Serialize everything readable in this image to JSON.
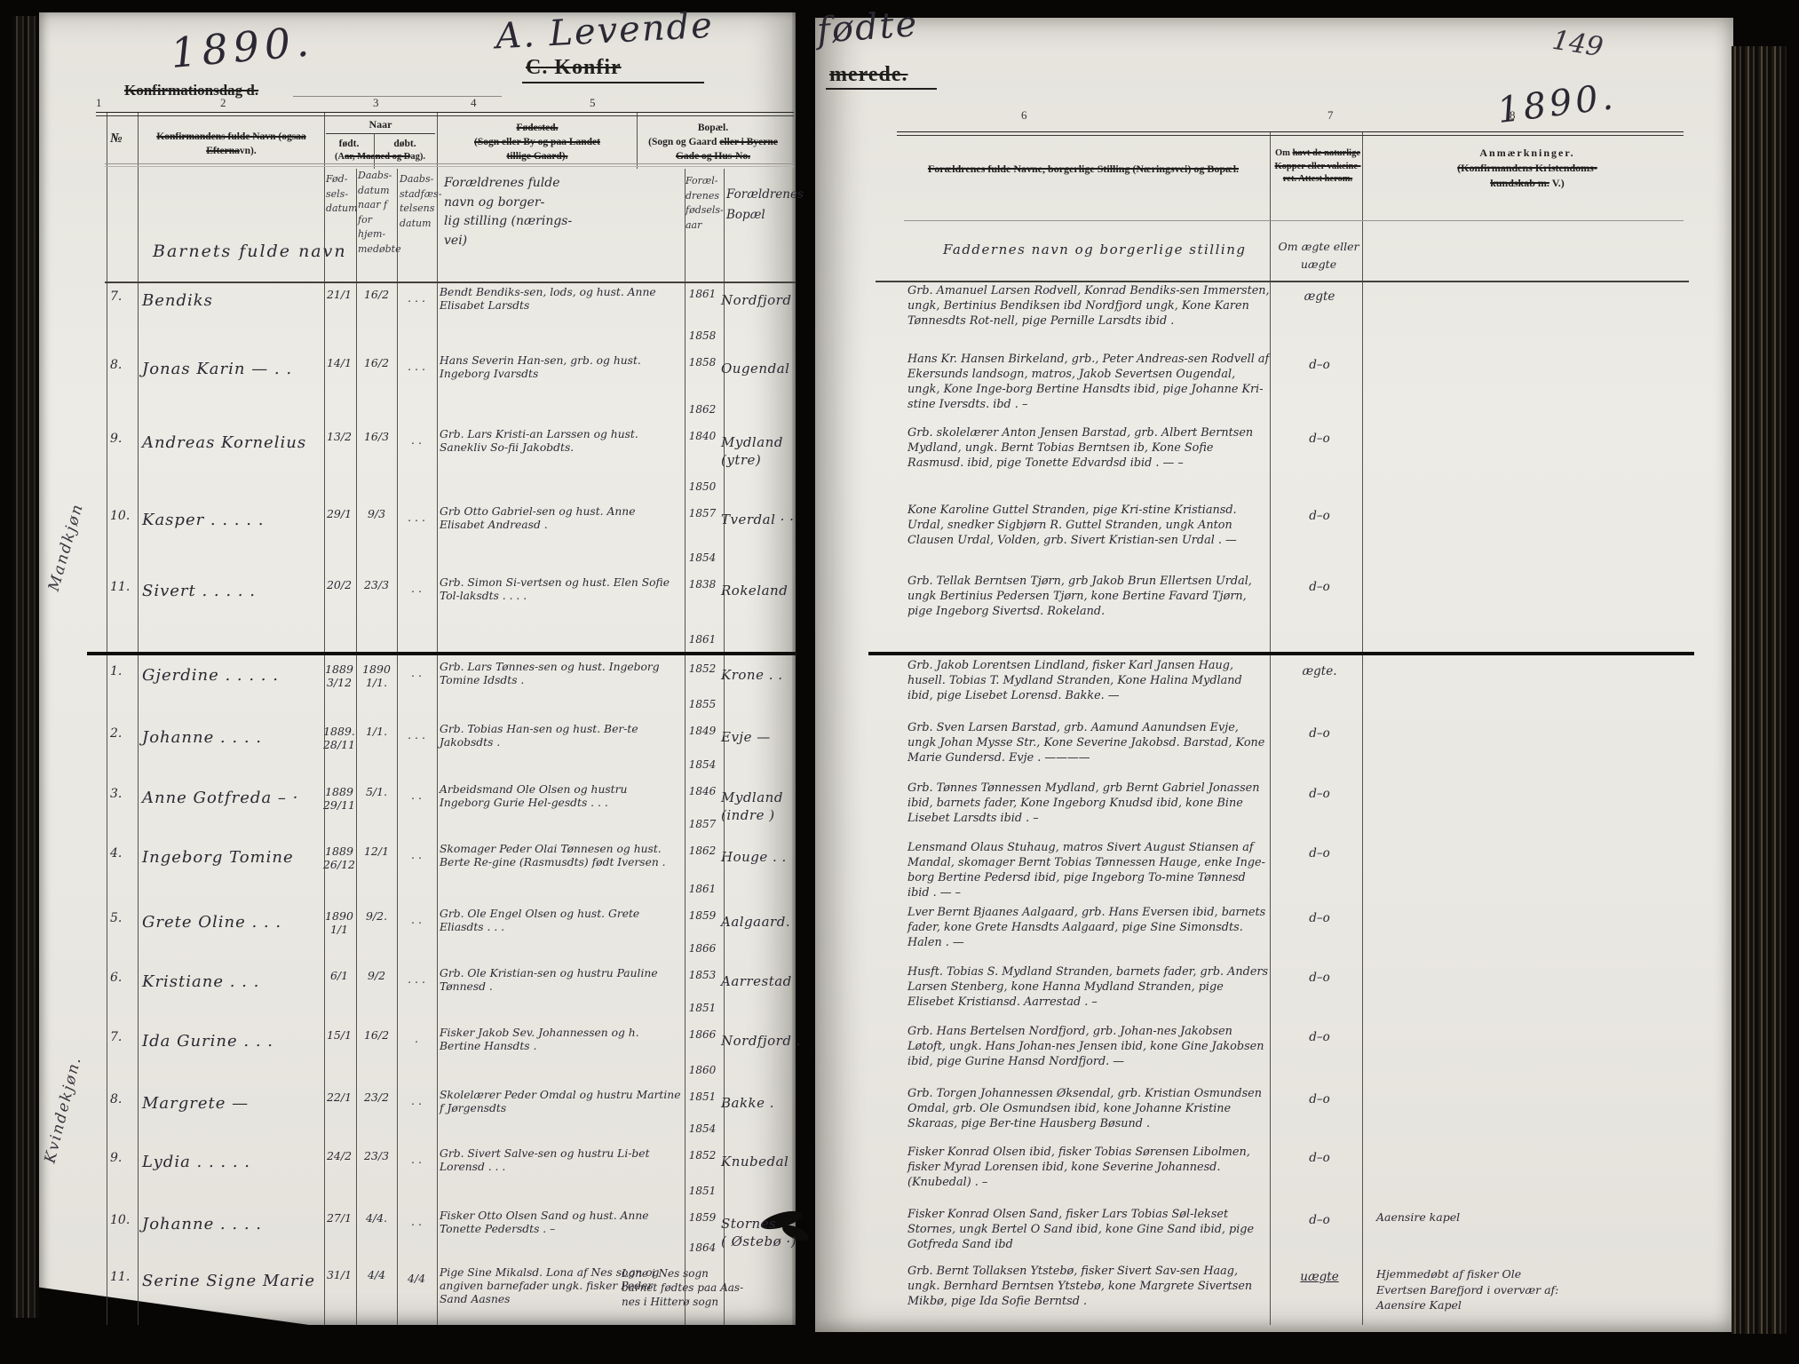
{
  "header": {
    "left": {
      "year": "1890.",
      "konfdag": "Konfirmationsdag d.",
      "levende": "A. Levende",
      "konfir": "C. Konfir"
    },
    "right": {
      "fodte": "fødte",
      "merede": "merede.",
      "page_number": "149",
      "year": "1890."
    }
  },
  "columns": {
    "left": [
      "1",
      "2",
      "3",
      "4",
      "5"
    ],
    "right": [
      "6",
      "7",
      "8"
    ]
  },
  "printed": {
    "no": "№",
    "name_struck": "Konfirmandens fulde Navn (ogsaa Efterna",
    "name_tail": "vn).",
    "naar": "Naar",
    "fodt": "født.",
    "dobt": "døbt.",
    "aar_pre": "(A",
    "aar_struck": "ar, Maaned og D",
    "aar_tail": "ag).",
    "fodested1": "Fødested.",
    "fodested2": "(Sogn eller By og paa Landet",
    "fodested3": "tillige Gaard).",
    "bopael1": "Bopæl.",
    "bopael2_pre": "(Sogn og Gaard ",
    "bopael2_struck": "eller i Byerne",
    "bopael3_struck": "Gade og Hus-No.",
    "col6": "Forældrenes fulde Navne, borgerlige Stilling (Næringsvei) og Bopæl.",
    "col7_pre": "Om ",
    "col7a_struck": "havt de naturlige",
    "col7b_struck": "Kopper eller vakcine-",
    "col7c_struck": "ret.  Attest herom.",
    "col8a": "Anmærkninger.",
    "col8b_struck": "(Konfirmandens Kristendoms-",
    "col8c_struck": "kundskab m.",
    "col8c_tail": " V.)"
  },
  "hw_head": {
    "name": "Barnets fulde navn",
    "born": "Fød-\nsels-\ndatum",
    "bapt": "Daabs-\ndatum\nnaar f\nfor hjem-\nmedøbte",
    "extra": "Daabs-\nstadfæs-\ntelsens\ndatum",
    "parents": "Forældrenes fulde\nnavn og borger-\nlig stilling (nærings-\nvei)",
    "years": "Foræl-\ndrenes\nfødsels-\naar",
    "res": "Forældrenes\nBopæl",
    "god": "Faddernes navn og borgerlige stilling",
    "legit": "Om ægte eller\nuægte"
  },
  "margin": {
    "section_a": "Mandkjøn",
    "section_b": "Kvindekjøn."
  },
  "sections": [
    {
      "label": "Mandkjøn",
      "rows": [
        {
          "no": "7.",
          "name": "Bendiks",
          "born": "21/1",
          "bapt": "16/2",
          "extra": ". . .",
          "parents": "Bendt Bendiks-sen, lods, og hust. Anne Elisabet Larsdts",
          "years": [
            "1861",
            "1858"
          ],
          "residence": "Nordfjord",
          "godparents": "Grb. Amanuel Larsen Rodvell, Konrad Bendiks-sen Immersten, ungk, Bertinius Bendiksen ibd Nordfjord ungk, Kone Karen Tønnesdts Rot-nell, pige Pernille Larsdts ibid .",
          "legitimacy": "ægte",
          "remark": ""
        },
        {
          "no": "8.",
          "name": "Jonas Karin  — . .",
          "born": "14/1",
          "bapt": "16/2",
          "extra": ". . .",
          "parents": "Hans Severin Han-sen, grb. og hust. Ingeborg Ivarsdts",
          "years": [
            "1858",
            "1862"
          ],
          "residence": "Ougendal",
          "godparents": "Hans Kr. Hansen Birkeland, grb., Peter Andreas-sen Rodvell af Ekersunds landsogn, matros, Jakob Severtsen Ougendal, ungk, Kone Inge-borg Bertine Hansdts ibid, pige Johanne Kri-stine Iversdts. ibd . –",
          "legitimacy": "d–o",
          "remark": ""
        },
        {
          "no": "9.",
          "name": "Andreas Kornelius",
          "born": "13/2",
          "bapt": "16/3",
          "extra": ". .",
          "parents": "Grb. Lars Kristi-an Larssen og hust. Sanekliv So-fii Jakobdts.",
          "years": [
            "1840",
            "1850"
          ],
          "residence": "Mydland\n(ytre)",
          "godparents": "Grb. skolelærer Anton Jensen Barstad, grb. Albert Berntsen Mydland, ungk. Bernt Tobias Berntsen ib, Kone Sofie Rasmusd. ibid, pige Tonette Edvardsd ibid . — –",
          "legitimacy": "d–o",
          "remark": ""
        },
        {
          "no": "10.",
          "name": "Kasper  .  .  .  .  .",
          "born": "29/1",
          "bapt": "9/3",
          "extra": ". . .",
          "parents": "Grb Otto Gabriel-sen og hust. Anne Elisabet Andreasd .",
          "years": [
            "1857",
            "1854"
          ],
          "residence": "Tverdal  · ·",
          "godparents": "Kone Karoline Guttel Stranden, pige Kri-stine Kristiansd. Urdal, snedker Sigbjørn R. Guttel Stranden, ungk Anton Clausen Urdal, Volden, grb. Sivert Kristian-sen Urdal . —",
          "legitimacy": "d–o",
          "remark": ""
        },
        {
          "no": "11.",
          "name": "Sivert  .  .  .  .  .",
          "born": "20/2",
          "bapt": "23/3",
          "extra": ". .",
          "parents": "Grb. Simon Si-vertsen og hust. Elen Sofie Tol-laksdts .   .   . .",
          "years": [
            "1838",
            "1861"
          ],
          "residence": "Rokeland",
          "godparents": "Grb. Tellak Berntsen Tjørn, grb Jakob Brun Ellertsen Urdal, ungk Bertinius Pedersen Tjørn, kone Bertine Favard Tjørn, pige Ingeborg Sivertsd. Rokeland.",
          "legitimacy": "d–o",
          "remark": ""
        }
      ]
    },
    {
      "label": "Kvindekjøn.",
      "rows": [
        {
          "no": "1.",
          "name": "Gjerdine  .  .  .  . .",
          "born": "1889\n3/12",
          "bapt": "1890\n1/1.",
          "extra": ". .",
          "parents": "Grb. Lars Tønnes-sen og hust. Ingeborg Tomine Idsdts .",
          "years": [
            "1852",
            "1855"
          ],
          "residence": "Krone  . .",
          "godparents": "Grb. Jakob Lorentsen Lindland, fisker Karl Jansen Haug, husell. Tobias T. Mydland Stranden, Kone Halina Mydland ibid, pige Lisebet Lorensd. Bakke. —",
          "legitimacy": "ægte.",
          "remark": ""
        },
        {
          "no": "2.",
          "name": "Johanne .  .  .  .",
          "born": "1889.\n28/11",
          "bapt": "1/1.",
          "extra": ". . .",
          "parents": "Grb. Tobias Han-sen og hust. Ber-te Jakobsdts .",
          "years": [
            "1849",
            "1854"
          ],
          "residence": "Evje  —",
          "godparents": "Grb. Sven Larsen Barstad, grb. Aamund Aanundsen Evje, ungk Johan Mysse Str., Kone Severine Jakobsd. Barstad, Kone Marie Gundersd. Evje .  ————",
          "legitimacy": "d–o",
          "remark": ""
        },
        {
          "no": "3.",
          "name": "Anne Gotfreda  – ·",
          "born": "1889\n29/11",
          "bapt": "5/1.",
          "extra": ". .",
          "parents": "Arbeidsmand Ole Olsen og hustru Ingeborg Gurie Hel-gesdts .    .   .",
          "years": [
            "1846",
            "1857"
          ],
          "residence": "Mydland\n(indre )",
          "godparents": "Grb. Tønnes Tønnessen Mydland, grb Bernt Gabriel Jonassen ibid, barnets fader, Kone Ingeborg Knudsd ibid, kone Bine Lisebet Larsdts ibid .  –",
          "legitimacy": "d–o",
          "remark": ""
        },
        {
          "no": "4.",
          "name": "Ingeborg Tomine",
          "born": "1889\n26/12",
          "bapt": "12/1",
          "extra": ". .",
          "parents": "Skomager Peder Olai Tønnesen og hust. Berte Re-gine (Rasmusdts) født Iversen .",
          "years": [
            "1862",
            "1861"
          ],
          "residence": "Houge  . .",
          "godparents": "Lensmand Olaus Stuhaug, matros Sivert August Stiansen af Mandal, skomager Bernt Tobias Tønnessen Hauge, enke Inge-borg Bertine Pedersd ibid, pige Ingeborg To-mine Tønnesd ibid .   —   –",
          "legitimacy": "d–o",
          "remark": ""
        },
        {
          "no": "5.",
          "name": "Grete Oline  .  . .",
          "born": "1890\n1/1",
          "bapt": "9/2.",
          "extra": ". .",
          "parents": "Grb. Ole Engel Olsen og hust. Grete Eliasdts .    .   .",
          "years": [
            "1859",
            "1866"
          ],
          "residence": "Aalgaard.",
          "godparents": "Lver Bernt Bjaanes Aalgaard, grb. Hans Eversen ibid, barnets fader, kone Grete Hansdts Aalgaard, pige Sine Simonsdts. Halen . —",
          "legitimacy": "d–o",
          "remark": ""
        },
        {
          "no": "6.",
          "name": "Kristiane  .  . .",
          "born": "6/1",
          "bapt": "9/2",
          "extra": ". . .",
          "parents": "Grb. Ole Kristian-sen og hustru Pauline Tønnesd .",
          "years": [
            "1853",
            "1851"
          ],
          "residence": "Aarrestad",
          "godparents": "Husft. Tobias S. Mydland Stranden, barnets fader, grb. Anders Larsen Stenberg, kone Hanna Mydland Stranden, pige Elisebet Kristiansd. Aarrestad . –",
          "legitimacy": "d–o",
          "remark": ""
        },
        {
          "no": "7.",
          "name": "Ida Gurine  .  . .",
          "born": "15/1",
          "bapt": "16/2",
          "extra": ". ",
          "parents": "Fisker Jakob Sev. Johannessen og h. Bertine Hansdts .",
          "years": [
            "1866",
            "1860"
          ],
          "residence": "Nordfjord .",
          "godparents": "Grb. Hans Bertelsen Nordfjord, grb. Johan-nes Jakobsen Løtoft, ungk. Hans Johan-nes Jensen ibid, kone Gine Jakobsen ibid, pige Gurine Hansd Nordfjord. —",
          "legitimacy": "d–o",
          "remark": ""
        },
        {
          "no": "8.",
          "name": "Margrete  —",
          "born": "22/1",
          "bapt": "23/2",
          "extra": ". .",
          "parents": "Skolelærer Peder Omdal og hustru Martine f Jørgensdts",
          "years": [
            "1851",
            "1854"
          ],
          "residence": "Bakke  .",
          "godparents": "Grb. Torgen Johannessen Øksendal, grb. Kristian Osmundsen Omdal, grb. Ole Osmundsen ibid, kone Johanne Kristine Skaraas, pige Ber-tine Hausberg Bøsund .",
          "legitimacy": "d–o",
          "remark": ""
        },
        {
          "no": "9.",
          "name": "Lydia  .  .  .  . .",
          "born": "24/2",
          "bapt": "23/3",
          "extra": ". .",
          "parents": "Grb. Sivert Salve-sen og hustru Li-bet Lorensd .   . .",
          "years": [
            "1852",
            "1851"
          ],
          "residence": "Knubedal",
          "godparents": "Fisker Konrad Olsen ibid, fisker Tobias Sørensen Libolmen, fisker Myrad Lorensen ibid, kone Severine Johannesd. (Knubedal) . –",
          "legitimacy": "d–o",
          "remark": ""
        },
        {
          "no": "10.",
          "name": "Johanne  .  .  . .",
          "born": "27/1",
          "bapt": "4/4.",
          "extra": ". .",
          "parents": "Fisker Otto Olsen Sand og hust. Anne Tonette Pedersdts . –",
          "years": [
            "1859",
            "1864"
          ],
          "residence": "Stornes\n( Østebø ·)",
          "godparents": "Fisker Konrad Olsen Sand, fisker Lars Tobias Søl-lekset Stornes, ungk Bertel O Sand ibid, kone Gine Sand ibid, pige Gotfreda Sand ibd",
          "legitimacy": "d–o",
          "remark": "Aaensire kapel"
        },
        {
          "no": "11.",
          "name": "Serine Signe Marie",
          "born": "31/1",
          "bapt": "4/4",
          "extra": "4/4",
          "parents": "Pige Sine Mikalsd. Lona af Nes sogn og angiven barnefader ungk. fisker Peder Sand Aasnes",
          "years": [],
          "residence": "Lone i Nes sogn\nbarnet fødtes paa Aas-\nnes i Hitterø sogn",
          "godparents": "Grb. Bernt Tollaksen Ytstebø, fisker Sivert Sav-sen Haag, ungk. Bernhard Berntsen Ytstebø, kone Margrete Sivertsen Mikbø, pige Ida Sofie Berntsd .",
          "legitimacy": "uægte",
          "remark": "Hjemmedøbt af fisker Ole\nEvertsen Barefjord i overvær af:\nAaensire Kapel"
        }
      ]
    }
  ]
}
